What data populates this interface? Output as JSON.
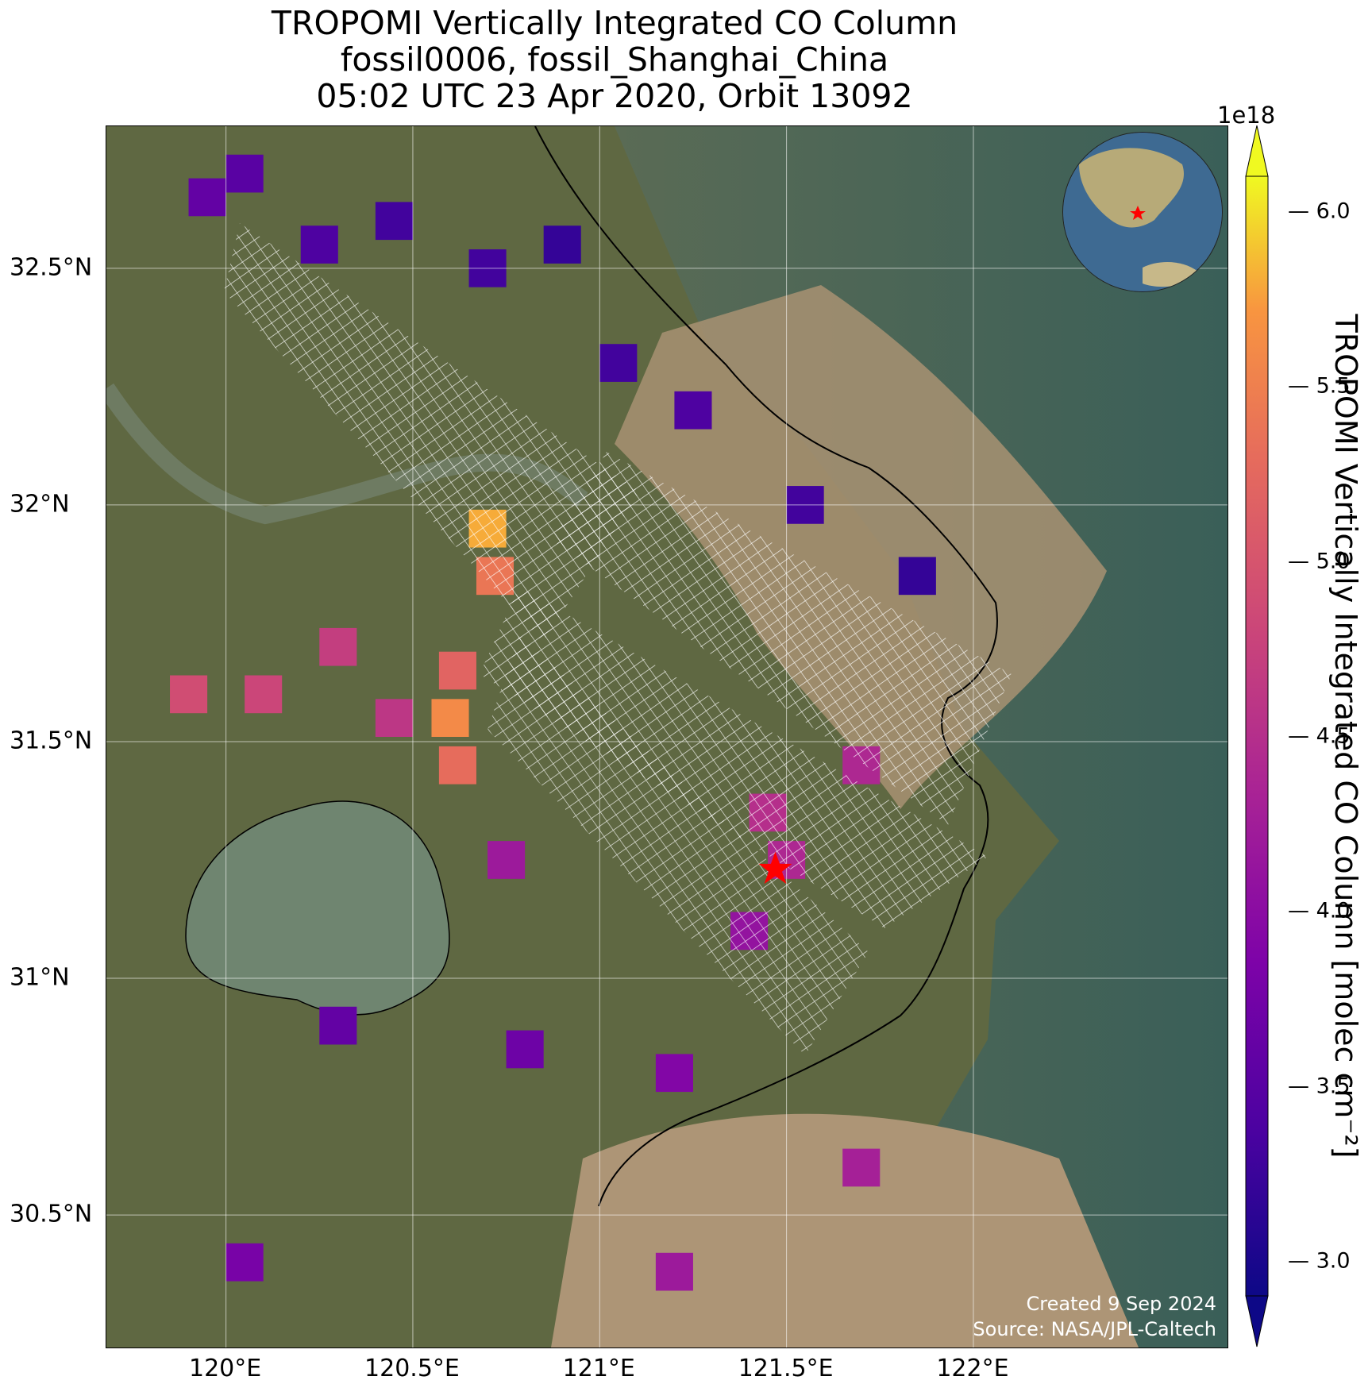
{
  "title": {
    "line1": "TROPOMI Vertically Integrated CO Column",
    "line2": "fossil0006, fossil_Shanghai_China",
    "line3": "05:02 UTC 23 Apr 2020, Orbit 13092"
  },
  "map": {
    "x_ticks": [
      "120°E",
      "120.5°E",
      "121°E",
      "121.5°E",
      "122°E"
    ],
    "y_ticks": [
      "32.5°N",
      "32°N",
      "31.5°N",
      "31°N",
      "30.5°N"
    ],
    "extent": {
      "lon": [
        119.68,
        122.68
      ],
      "lat": [
        30.22,
        32.8
      ]
    },
    "target": {
      "lon": 121.47,
      "lat": 31.23,
      "marker": "red-star"
    },
    "colors": {
      "land": "#5c6440",
      "water_river": "#a58f6f",
      "sea": "#3f6b63",
      "grid": "#ffffff",
      "target_star": "#ff0000"
    }
  },
  "colorbar": {
    "label": "TROPOMI Vertically Integrated CO Column [molec cm⁻²]",
    "exponent": "1e18",
    "ticks": [
      "6.0",
      "5.5",
      "5.0",
      "4.5",
      "4.0",
      "3.5",
      "3.0"
    ],
    "range": [
      2.9,
      6.1
    ],
    "colormap": "plasma",
    "extend": "both"
  },
  "credits": {
    "created": "Created 9 Sep 2024",
    "source": "Source: NASA/JPL-Caltech"
  },
  "inset_globe": {
    "marker": "red-star",
    "region": "East Asia"
  },
  "chart_data": {
    "type": "heatmap",
    "title": "TROPOMI Vertically Integrated CO Column",
    "value_units": "molec cm⁻² (×1e18)",
    "xlim": [
      119.68,
      122.68
    ],
    "ylim": [
      30.22,
      32.8
    ],
    "cells": [
      {
        "lon": 119.95,
        "lat": 32.65,
        "v": 3.6
      },
      {
        "lon": 120.05,
        "lat": 32.7,
        "v": 3.5
      },
      {
        "lon": 120.25,
        "lat": 32.55,
        "v": 3.4
      },
      {
        "lon": 120.45,
        "lat": 32.6,
        "v": 3.3
      },
      {
        "lon": 120.7,
        "lat": 32.5,
        "v": 3.3
      },
      {
        "lon": 120.9,
        "lat": 32.55,
        "v": 3.2
      },
      {
        "lon": 121.05,
        "lat": 32.3,
        "v": 3.3
      },
      {
        "lon": 121.25,
        "lat": 32.2,
        "v": 3.4
      },
      {
        "lon": 121.55,
        "lat": 32.0,
        "v": 3.3
      },
      {
        "lon": 121.85,
        "lat": 31.85,
        "v": 3.2
      },
      {
        "lon": 119.9,
        "lat": 31.6,
        "v": 4.9
      },
      {
        "lon": 120.1,
        "lat": 31.6,
        "v": 4.8
      },
      {
        "lon": 120.3,
        "lat": 31.7,
        "v": 4.7
      },
      {
        "lon": 120.45,
        "lat": 31.55,
        "v": 4.6
      },
      {
        "lon": 120.7,
        "lat": 31.95,
        "v": 5.8
      },
      {
        "lon": 120.72,
        "lat": 31.85,
        "v": 5.4
      },
      {
        "lon": 120.62,
        "lat": 31.65,
        "v": 5.2
      },
      {
        "lon": 120.6,
        "lat": 31.55,
        "v": 5.6
      },
      {
        "lon": 120.62,
        "lat": 31.45,
        "v": 5.3
      },
      {
        "lon": 120.75,
        "lat": 31.25,
        "v": 4.2
      },
      {
        "lon": 121.45,
        "lat": 31.35,
        "v": 4.5
      },
      {
        "lon": 121.5,
        "lat": 31.25,
        "v": 4.4
      },
      {
        "lon": 121.4,
        "lat": 31.1,
        "v": 4.1
      },
      {
        "lon": 121.7,
        "lat": 31.45,
        "v": 4.4
      },
      {
        "lon": 121.2,
        "lat": 30.8,
        "v": 3.9
      },
      {
        "lon": 120.8,
        "lat": 30.85,
        "v": 3.7
      },
      {
        "lon": 120.3,
        "lat": 30.9,
        "v": 3.6
      },
      {
        "lon": 121.7,
        "lat": 30.6,
        "v": 4.3
      },
      {
        "lon": 120.05,
        "lat": 30.4,
        "v": 3.8
      },
      {
        "lon": 121.2,
        "lat": 30.38,
        "v": 4.2
      }
    ]
  }
}
